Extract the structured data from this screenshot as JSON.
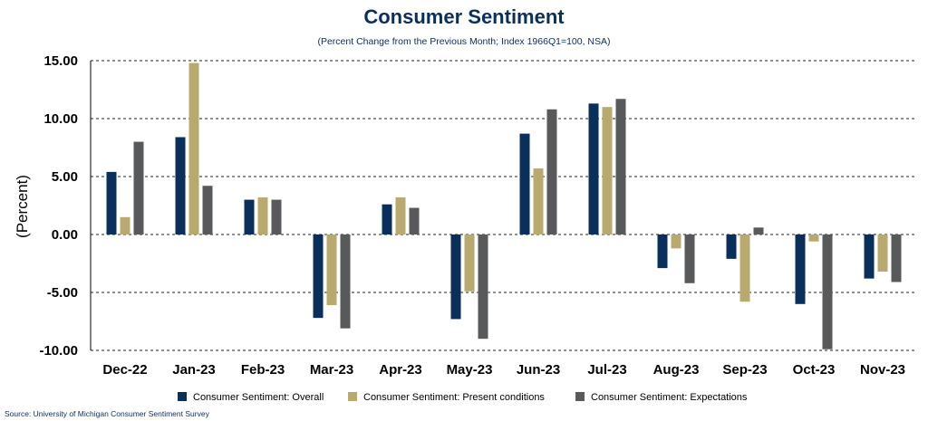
{
  "title": "Consumer Sentiment",
  "subtitle": "(Percent Change from the Previous Month; Index 1966Q1=100, NSA)",
  "source": "Source: University of Michigan Consumer Sentiment Survey",
  "chart_data": {
    "type": "bar",
    "ylabel": "(Percent)",
    "xlabel": "",
    "ylim": [
      -10,
      15
    ],
    "yticks": [
      15,
      10,
      5,
      0,
      -5,
      -10
    ],
    "yticklabels": [
      "15.00",
      "10.00",
      "5.00",
      "0.00",
      "-5.00",
      "-10.00"
    ],
    "grid": "horizontal-dashed",
    "legend_position": "bottom",
    "categories": [
      "Dec-22",
      "Jan-23",
      "Feb-23",
      "Mar-23",
      "Apr-23",
      "May-23",
      "Jun-23",
      "Jul-23",
      "Aug-23",
      "Sep-23",
      "Oct-23",
      "Nov-23"
    ],
    "series": [
      {
        "name": "Consumer Sentiment: Overall",
        "color": "#0b2f5b",
        "values": [
          5.4,
          8.4,
          3.0,
          -7.2,
          2.6,
          -7.3,
          8.7,
          11.3,
          -2.9,
          -2.1,
          -6.0,
          -3.8
        ]
      },
      {
        "name": "Consumer Sentiment: Present conditions",
        "color": "#b8a96e",
        "values": [
          1.5,
          14.8,
          3.2,
          -6.1,
          3.2,
          -4.9,
          5.7,
          11.0,
          -1.2,
          -5.8,
          -0.6,
          -3.2
        ]
      },
      {
        "name": "Consumer Sentiment: Expectations",
        "color": "#58595b",
        "values": [
          8.0,
          4.2,
          3.0,
          -8.1,
          2.3,
          -9.0,
          10.8,
          11.7,
          -4.2,
          0.6,
          -9.9,
          -4.1
        ]
      }
    ]
  }
}
